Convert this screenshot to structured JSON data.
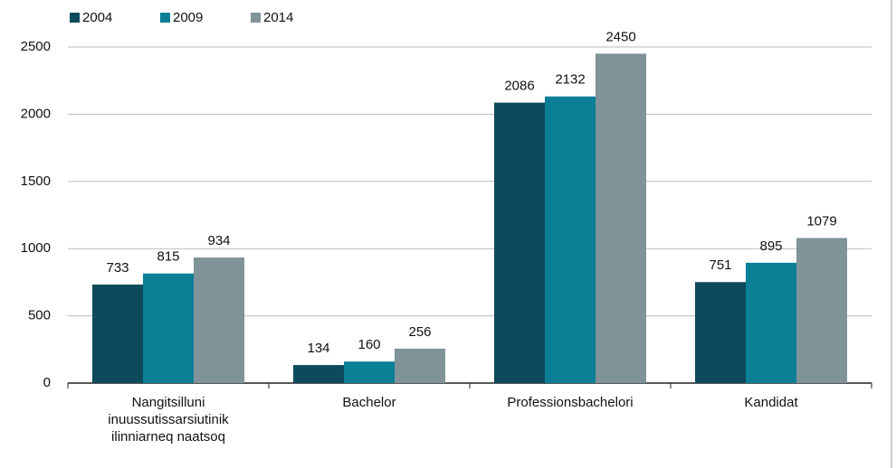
{
  "chart_data": {
    "type": "bar",
    "categories": [
      "Nangitsilluni inuussutissarsiutinik ilinniarneq naatsoq",
      "Bachelor",
      "Professionsbachelori",
      "Kandidat"
    ],
    "series": [
      {
        "name": "2004",
        "color": "#0d4a5c",
        "values": [
          733,
          134,
          2086,
          751
        ]
      },
      {
        "name": "2009",
        "color": "#0a7f96",
        "values": [
          815,
          160,
          2132,
          895
        ]
      },
      {
        "name": "2014",
        "color": "#7f9399",
        "values": [
          934,
          256,
          2450,
          1079
        ]
      }
    ],
    "ylim": [
      0,
      2500
    ],
    "yticks": [
      0,
      500,
      1000,
      1500,
      2000,
      2500
    ],
    "grid": true,
    "legend": "top-left"
  }
}
